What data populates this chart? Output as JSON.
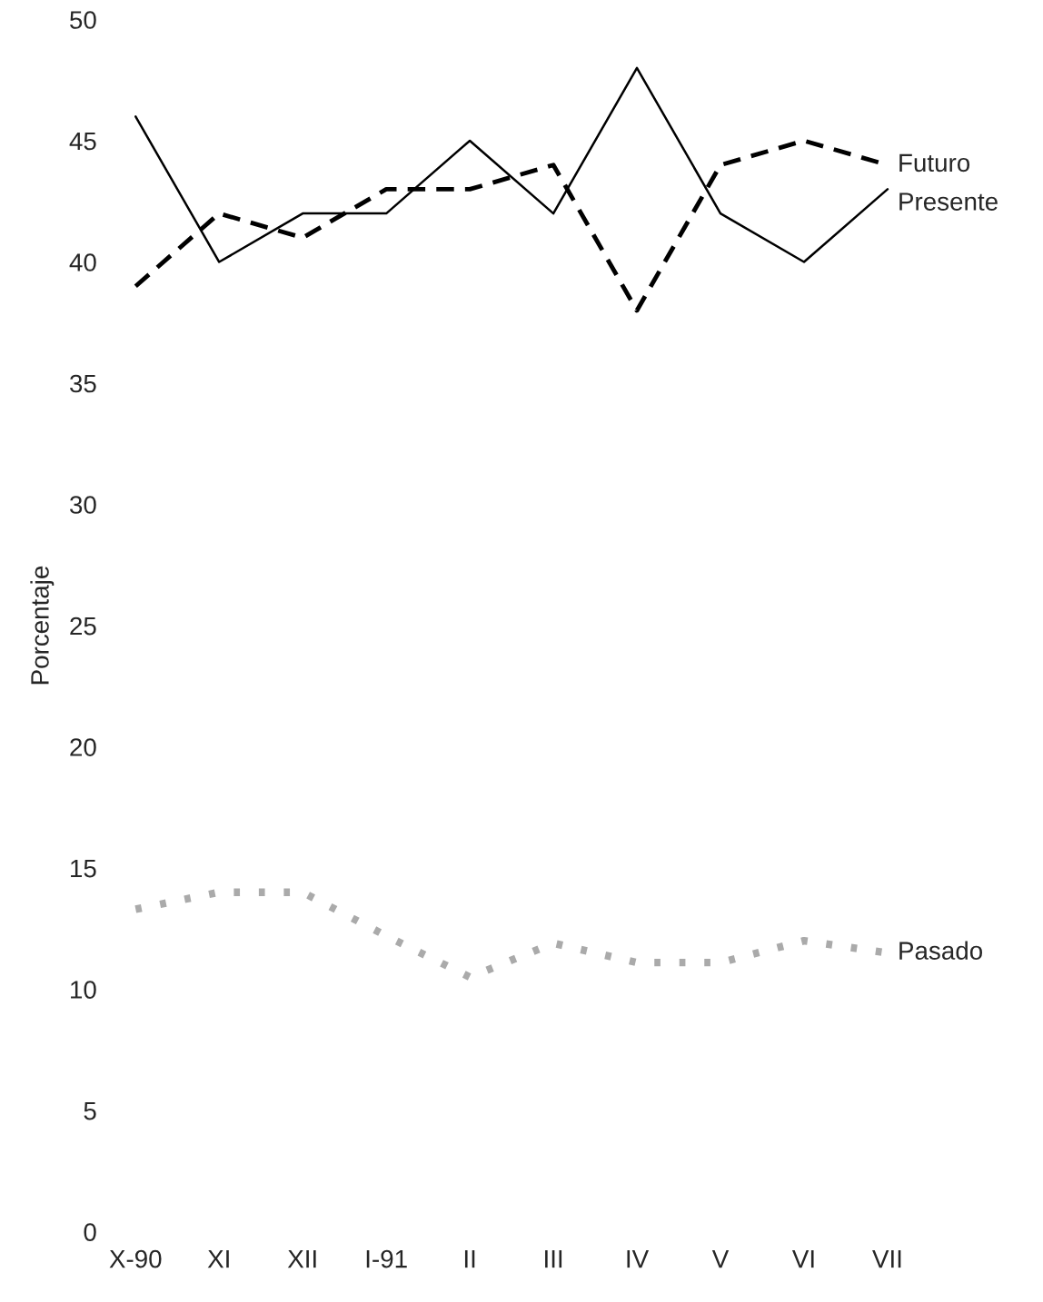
{
  "chart_data": {
    "type": "line",
    "ylabel": "Porcentaje",
    "categories": [
      "X-90",
      "XI",
      "XII",
      "I-91",
      "II",
      "III",
      "IV",
      "V",
      "VI",
      "VII"
    ],
    "series": [
      {
        "name": "Futuro",
        "color": "#000000",
        "line_style": "dashed",
        "values": [
          39,
          42,
          41,
          43,
          43,
          44,
          38,
          44,
          45,
          44
        ]
      },
      {
        "name": "Presente",
        "color": "#000000",
        "line_style": "solid",
        "values": [
          46,
          40,
          42,
          42,
          45,
          42,
          48,
          42,
          40,
          43
        ]
      },
      {
        "name": "Pasado",
        "color": "#aaaaaa",
        "line_style": "dotted",
        "values": [
          13.3,
          14,
          14,
          12.2,
          10.5,
          11.9,
          11.1,
          11.1,
          12,
          11.5
        ]
      }
    ],
    "ylim": [
      0,
      50
    ],
    "yticks": [
      0,
      5,
      10,
      15,
      20,
      25,
      30,
      35,
      40,
      45,
      50
    ],
    "grid": false,
    "legend": false
  }
}
